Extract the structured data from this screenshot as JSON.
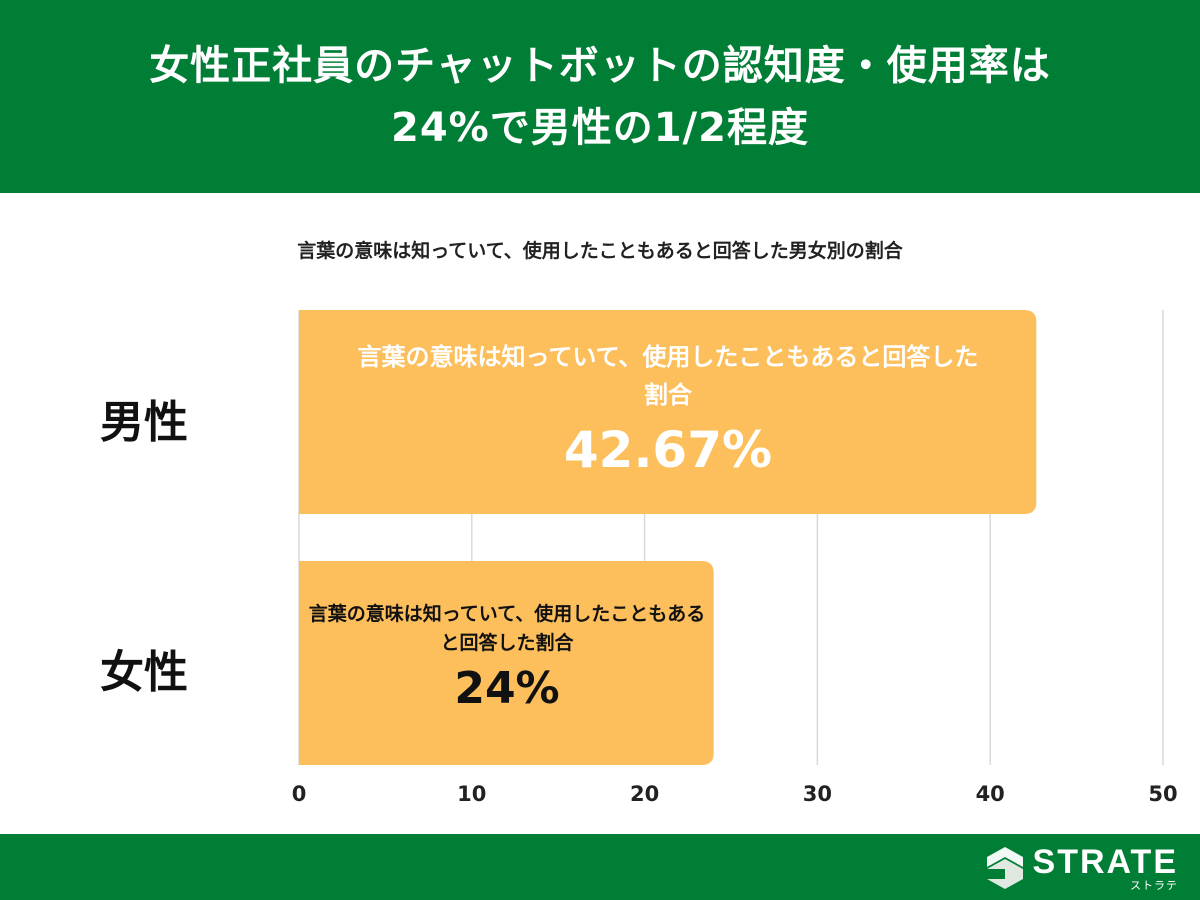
{
  "header": {
    "title_line1": "女性正社員のチャットボットの認知度・使用率は",
    "title_line2": "24%で男性の1/2程度"
  },
  "chart_data": {
    "type": "bar",
    "orientation": "horizontal",
    "title": "言葉の意味は知っていて、使用したこともあると回答した男女別の割合",
    "categories": [
      "男性",
      "女性"
    ],
    "values": [
      42.67,
      24
    ],
    "bar_labels": [
      {
        "description": "言葉の意味は知っていて、使用したこともあると回答した割合",
        "value_text": "42.67%"
      },
      {
        "description": "言葉の意味は知っていて、使用したこともあると回答した割合",
        "value_text": "24%"
      }
    ],
    "xlim": [
      0,
      50
    ],
    "xticks": [
      0,
      10,
      20,
      30,
      40,
      50
    ],
    "grid": true,
    "legend": "none",
    "colors": {
      "bar": "#fdbe5c",
      "grid": "#d9d9d9",
      "accent": "#007e35"
    }
  },
  "footer": {
    "logo_main": "STRATE",
    "logo_sub": "ストラテ",
    "logo_icon": "strate-logo-icon"
  }
}
